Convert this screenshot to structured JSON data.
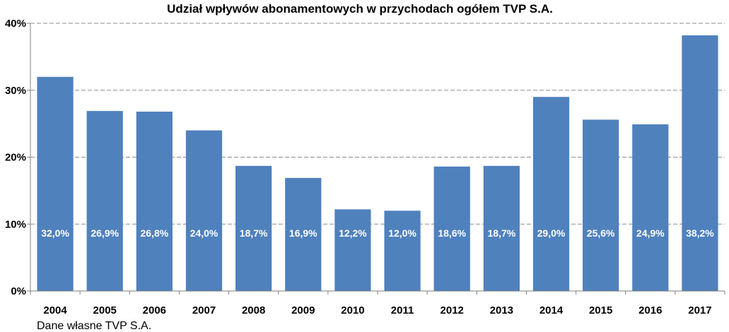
{
  "chart_data": {
    "type": "bar",
    "title": "Udział wpływów abonamentowych w przychodach ogółem TVP S.A.",
    "categories": [
      "2004",
      "2005",
      "2006",
      "2007",
      "2008",
      "2009",
      "2010",
      "2011",
      "2012",
      "2013",
      "2014",
      "2015",
      "2016",
      "2017"
    ],
    "values": [
      32.0,
      26.9,
      26.8,
      24.0,
      18.7,
      16.9,
      12.2,
      12.0,
      18.6,
      18.7,
      29.0,
      25.6,
      24.9,
      38.2
    ],
    "data_labels": [
      "32,0%",
      "26,9%",
      "26,8%",
      "24,0%",
      "18,7%",
      "16,9%",
      "12,2%",
      "12,0%",
      "18,6%",
      "18,7%",
      "29,0%",
      "25,6%",
      "24,9%",
      "38,2%"
    ],
    "y_ticks": [
      "0%",
      "10%",
      "20%",
      "30%",
      "40%"
    ],
    "y_tick_values": [
      0,
      10,
      20,
      30,
      40
    ],
    "ylim": [
      0,
      40
    ],
    "grid": true,
    "bar_color": "#4f81bd",
    "legend": "none",
    "source": "Dane własne TVP S.A."
  }
}
